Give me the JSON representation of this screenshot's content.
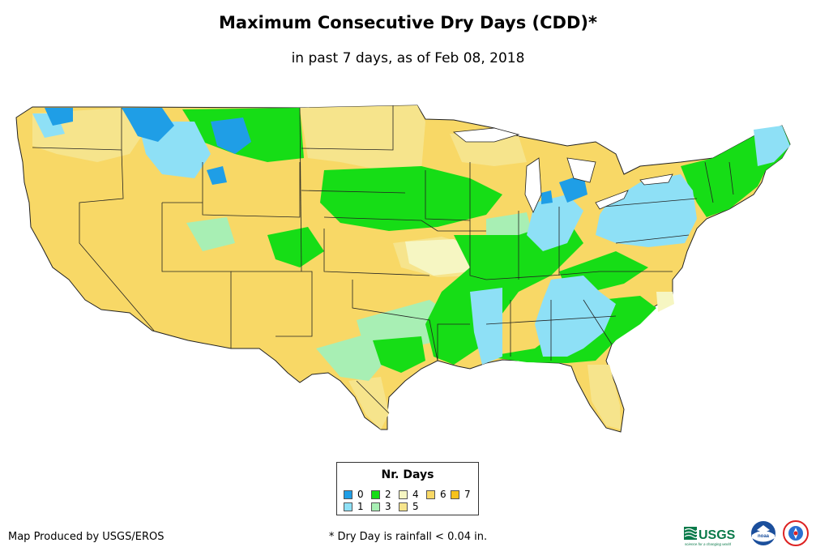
{
  "map": {
    "title": "Maximum Consecutive Dry Days (CDD)*",
    "subtitle": "in past 7 days, as of Feb 08, 2018"
  },
  "colors": {
    "d0": "#1f9ee6",
    "d1": "#8ee0f6",
    "d2": "#16dd16",
    "d3": "#a8efb4",
    "d4": "#f6f6c2",
    "d5": "#f6e48c",
    "d6": "#f8d866",
    "d7": "#f6c21c"
  },
  "legend": {
    "title": "Nr. Days",
    "items": [
      {
        "label": "0",
        "color": "#1f9ee6"
      },
      {
        "label": "1",
        "color": "#8ee0f6"
      },
      {
        "label": "2",
        "color": "#16dd16"
      },
      {
        "label": "3",
        "color": "#a8efb4"
      },
      {
        "label": "4",
        "color": "#f6f6c2"
      },
      {
        "label": "5",
        "color": "#f6e48c"
      },
      {
        "label": "6",
        "color": "#f8d866"
      },
      {
        "label": "7",
        "color": "#f6c21c"
      }
    ]
  },
  "footer": {
    "credit": "Map Produced by USGS/EROS",
    "footnote": "* Dry Day is rainfall < 0.04 in.",
    "usgs_logo_text": "USGS",
    "usgs_tagline": "science for a changing world",
    "noaa_logo_text": "noaa"
  }
}
